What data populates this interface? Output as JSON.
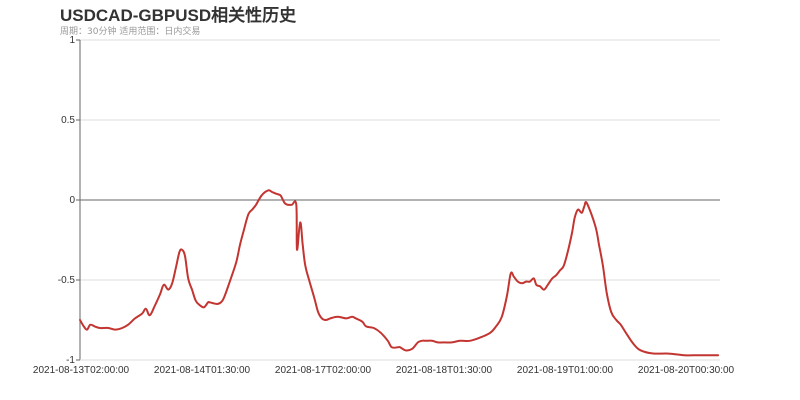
{
  "header": {
    "title": "USDCAD-GBPUSD相关性历史",
    "subtitle": "周期：30分钟 适用范围：日内交易"
  },
  "colors": {
    "line": "#c23531",
    "grid": "#dddddd",
    "axis": "#666666",
    "zero_line": "#666666",
    "text": "#333333",
    "subtitle": "#999999"
  },
  "chart_data": {
    "type": "line",
    "title": "USDCAD-GBPUSD相关性历史",
    "subtitle": "周期：30分钟 适用范围：日内交易",
    "xlabel": "",
    "ylabel": "",
    "ylim": [
      -1,
      1
    ],
    "yticks": [
      1,
      0.5,
      0,
      -0.5,
      -1
    ],
    "ytick_labels": [
      "1",
      "0.5",
      "0",
      "-0.5",
      "-1"
    ],
    "xtick_labels": [
      "2021-08-13T02:00:00",
      "2021-08-14T01:30:00",
      "2021-08-17T02:00:00",
      "2021-08-18T01:30:00",
      "2021-08-19T01:00:00",
      "2021-08-20T00:30:00"
    ],
    "grid": true,
    "legend": "none",
    "series": [
      {
        "name": "USDCAD-GBPUSD",
        "x_fraction": [
          0.0,
          0.006,
          0.011,
          0.016,
          0.023,
          0.031,
          0.044,
          0.055,
          0.066,
          0.075,
          0.086,
          0.097,
          0.103,
          0.109,
          0.117,
          0.125,
          0.131,
          0.138,
          0.144,
          0.15,
          0.155,
          0.159,
          0.164,
          0.169,
          0.175,
          0.181,
          0.188,
          0.194,
          0.2,
          0.203,
          0.214,
          0.22,
          0.225,
          0.234,
          0.244,
          0.25,
          0.256,
          0.263,
          0.269,
          0.275,
          0.284,
          0.294,
          0.3,
          0.306,
          0.313,
          0.316,
          0.32,
          0.325,
          0.331,
          0.338,
          0.344,
          0.348,
          0.339,
          0.352,
          0.358,
          0.366,
          0.372,
          0.378,
          0.384,
          0.391,
          0.403,
          0.416,
          0.425,
          0.431,
          0.441,
          0.447,
          0.459,
          0.47,
          0.481,
          0.487,
          0.497,
          0.5,
          0.509,
          0.519,
          0.528,
          0.534,
          0.541,
          0.55,
          0.559,
          0.569,
          0.581,
          0.594,
          0.609,
          0.625,
          0.641,
          0.65,
          0.659,
          0.667,
          0.673,
          0.678,
          0.684,
          0.691,
          0.697,
          0.703,
          0.709,
          0.713,
          0.719,
          0.725,
          0.731,
          0.738,
          0.744,
          0.75,
          0.756,
          0.763,
          0.769,
          0.773,
          0.778,
          0.784,
          0.788,
          0.792,
          0.805,
          0.811,
          0.817,
          0.823,
          0.83,
          0.838,
          0.845,
          0.853,
          0.863,
          0.872,
          0.883,
          0.898,
          0.92,
          0.944,
          0.967,
          0.997
        ],
        "values": [
          -0.75,
          -0.79,
          -0.81,
          -0.78,
          -0.79,
          -0.8,
          -0.8,
          -0.81,
          -0.8,
          -0.78,
          -0.74,
          -0.71,
          -0.68,
          -0.72,
          -0.66,
          -0.59,
          -0.53,
          -0.56,
          -0.52,
          -0.42,
          -0.33,
          -0.31,
          -0.35,
          -0.49,
          -0.56,
          -0.63,
          -0.66,
          -0.67,
          -0.64,
          -0.64,
          -0.65,
          -0.64,
          -0.61,
          -0.51,
          -0.39,
          -0.28,
          -0.19,
          -0.09,
          -0.06,
          -0.03,
          0.03,
          0.06,
          0.05,
          0.04,
          0.03,
          0.01,
          -0.02,
          -0.03,
          -0.03,
          -0.03,
          -0.14,
          -0.28,
          -0.31,
          -0.41,
          -0.5,
          -0.61,
          -0.7,
          -0.74,
          -0.75,
          -0.74,
          -0.73,
          -0.74,
          -0.73,
          -0.74,
          -0.76,
          -0.79,
          -0.8,
          -0.83,
          -0.88,
          -0.92,
          -0.92,
          -0.92,
          -0.94,
          -0.93,
          -0.89,
          -0.88,
          -0.88,
          -0.88,
          -0.89,
          -0.89,
          -0.89,
          -0.88,
          -0.88,
          -0.86,
          -0.83,
          -0.79,
          -0.73,
          -0.6,
          -0.46,
          -0.48,
          -0.51,
          -0.52,
          -0.51,
          -0.51,
          -0.49,
          -0.53,
          -0.54,
          -0.56,
          -0.53,
          -0.49,
          -0.47,
          -0.44,
          -0.41,
          -0.31,
          -0.2,
          -0.11,
          -0.06,
          -0.08,
          -0.04,
          -0.02,
          -0.16,
          -0.28,
          -0.41,
          -0.58,
          -0.7,
          -0.75,
          -0.78,
          -0.83,
          -0.89,
          -0.93,
          -0.95,
          -0.96,
          -0.96,
          -0.97,
          -0.97,
          -0.97
        ]
      }
    ]
  }
}
